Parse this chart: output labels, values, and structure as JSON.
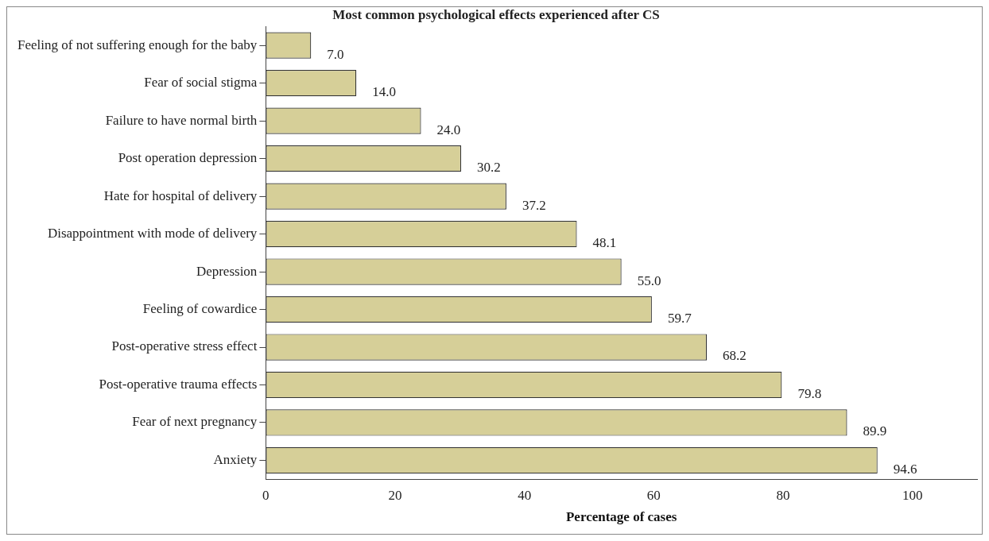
{
  "chart_data": {
    "type": "bar",
    "orientation": "horizontal",
    "title": "Most common psychological effects experienced after CS",
    "xlabel": "Percentage of cases",
    "categories": [
      "Feeling of not suffering enough for the baby",
      "Fear of social stigma",
      "Failure to have normal birth",
      "Post operation depression",
      "Hate for hospital of delivery",
      "Disappointment with mode of delivery",
      "Depression",
      "Feeling of cowardice",
      "Post-operative stress effect",
      "Post-operative trauma effects",
      "Fear of next pregnancy",
      "Anxiety"
    ],
    "values": [
      7.0,
      14.0,
      24.0,
      30.2,
      37.2,
      48.1,
      55.0,
      59.7,
      68.2,
      79.8,
      89.9,
      94.6
    ],
    "value_labels": [
      "7.0",
      "14.0",
      "24.0",
      "30.2",
      "37.2",
      "48.1",
      "55.0",
      "59.7",
      "68.2",
      "79.8",
      "89.9",
      "94.6"
    ],
    "color": "#d6cf98",
    "xlim": [
      0,
      110
    ],
    "xticks": [
      0,
      20,
      40,
      60,
      80,
      100
    ],
    "grid": false,
    "legend": false
  }
}
